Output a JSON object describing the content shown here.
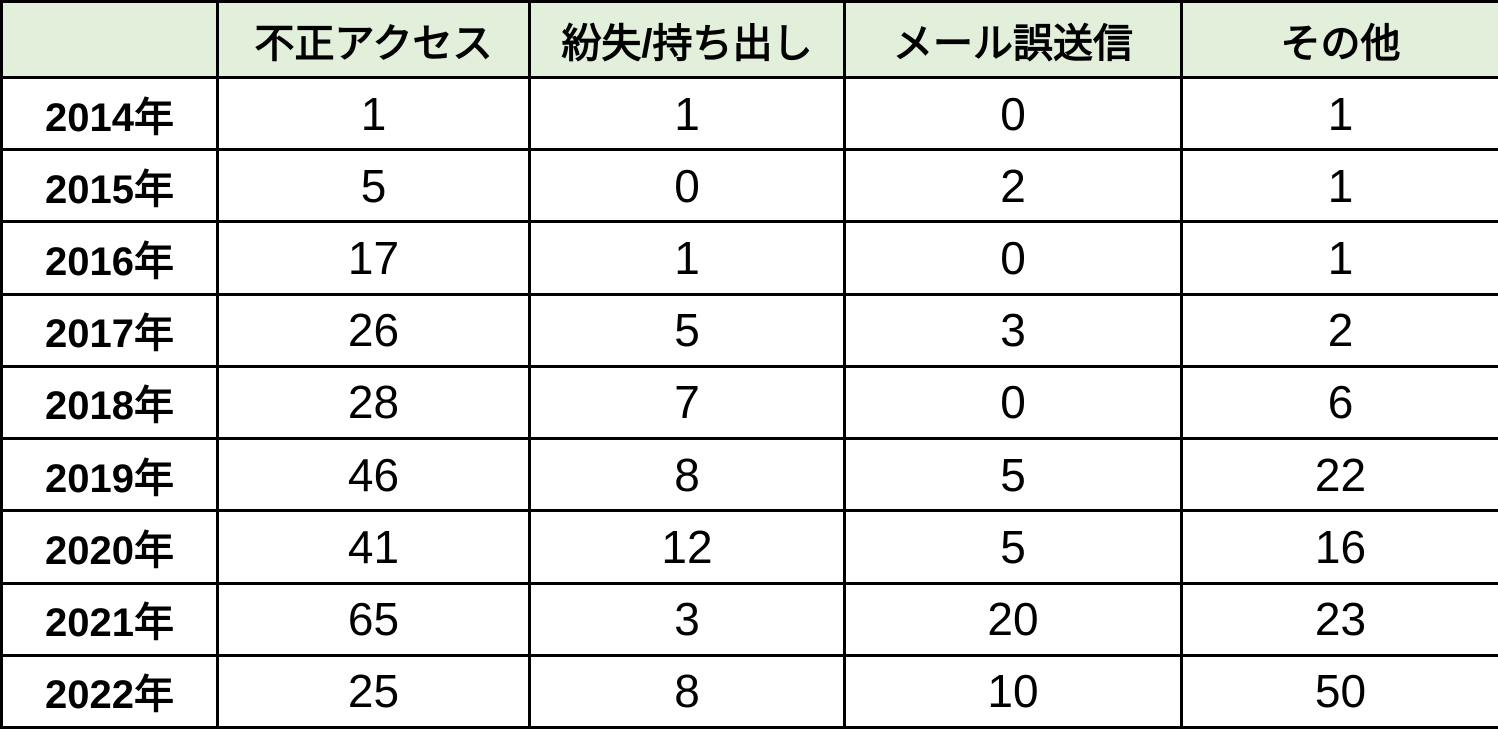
{
  "colors": {
    "header_bg": "#E2EFDA",
    "row_bg": "#FFFFFF",
    "border": "#000000",
    "text": "#000000"
  },
  "table": {
    "header": [
      "",
      "不正アクセス",
      "紛失/持ち出し",
      "メール誤送信",
      "その他"
    ],
    "rows": [
      {
        "year": "2014年",
        "values": [
          "1",
          "1",
          "0",
          "1"
        ]
      },
      {
        "year": "2015年",
        "values": [
          "5",
          "0",
          "2",
          "1"
        ]
      },
      {
        "year": "2016年",
        "values": [
          "17",
          "1",
          "0",
          "1"
        ]
      },
      {
        "year": "2017年",
        "values": [
          "26",
          "5",
          "3",
          "2"
        ]
      },
      {
        "year": "2018年",
        "values": [
          "28",
          "7",
          "0",
          "6"
        ]
      },
      {
        "year": "2019年",
        "values": [
          "46",
          "8",
          "5",
          "22"
        ]
      },
      {
        "year": "2020年",
        "values": [
          "41",
          "12",
          "5",
          "16"
        ]
      },
      {
        "year": "2021年",
        "values": [
          "65",
          "3",
          "20",
          "23"
        ]
      },
      {
        "year": "2022年",
        "values": [
          "25",
          "8",
          "10",
          "50"
        ]
      }
    ]
  },
  "chart_data": {
    "type": "table",
    "title": "",
    "categories": [
      "2014年",
      "2015年",
      "2016年",
      "2017年",
      "2018年",
      "2019年",
      "2020年",
      "2021年",
      "2022年"
    ],
    "series": [
      {
        "name": "不正アクセス",
        "values": [
          1,
          5,
          17,
          26,
          28,
          46,
          41,
          65,
          25
        ]
      },
      {
        "name": "紛失/持ち出し",
        "values": [
          1,
          0,
          1,
          5,
          7,
          8,
          12,
          3,
          8
        ]
      },
      {
        "name": "メール誤送信",
        "values": [
          0,
          2,
          0,
          3,
          0,
          5,
          5,
          20,
          10
        ]
      },
      {
        "name": "その他",
        "values": [
          1,
          1,
          1,
          2,
          6,
          22,
          16,
          23,
          50
        ]
      }
    ]
  }
}
